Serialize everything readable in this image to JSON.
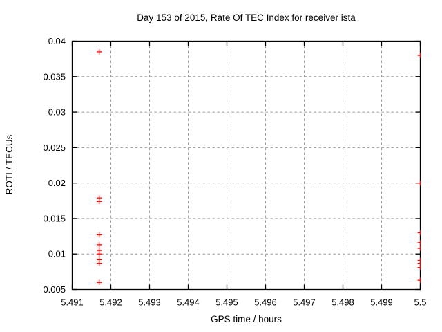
{
  "chart_data": {
    "type": "scatter",
    "title": "Day 153 of 2015, Rate Of TEC Index for receiver ista",
    "xlabel": "GPS time / hours",
    "ylabel": "ROTI / TECUs",
    "xlim": [
      5.491,
      5.5
    ],
    "ylim": [
      0.005,
      0.04
    ],
    "x_tick_labels": [
      "5.491",
      "5.492",
      "5.493",
      "5.494",
      "5.495",
      "5.496",
      "5.497",
      "5.498",
      "5.499",
      "5.5"
    ],
    "y_tick_labels": [
      "0.005",
      "0.01",
      "0.015",
      "0.02",
      "0.025",
      "0.03",
      "0.035",
      "0.04"
    ],
    "grid": true,
    "grid_style": "dashed",
    "legend": "none",
    "marker": "plus",
    "colors": {
      "marker": "#ff0000",
      "axis": "#000000",
      "grid": "#9a9a9a",
      "background": "#ffffff",
      "text": "#000000"
    },
    "series": [
      {
        "name": "ROTI",
        "points": [
          [
            5.4917,
            0.0385
          ],
          [
            5.4917,
            0.0179
          ],
          [
            5.4917,
            0.0174
          ],
          [
            5.4917,
            0.0127
          ],
          [
            5.4917,
            0.0113
          ],
          [
            5.4917,
            0.0105
          ],
          [
            5.4917,
            0.01
          ],
          [
            5.4917,
            0.0092
          ],
          [
            5.4917,
            0.0087
          ],
          [
            5.4917,
            0.006
          ],
          [
            5.5,
            0.038
          ],
          [
            5.5,
            0.02
          ],
          [
            5.5,
            0.013
          ],
          [
            5.5,
            0.0116
          ],
          [
            5.5,
            0.0108
          ],
          [
            5.5,
            0.0091
          ],
          [
            5.5,
            0.0087
          ],
          [
            5.5,
            0.0081
          ],
          [
            5.5,
            0.0063
          ]
        ]
      }
    ]
  }
}
